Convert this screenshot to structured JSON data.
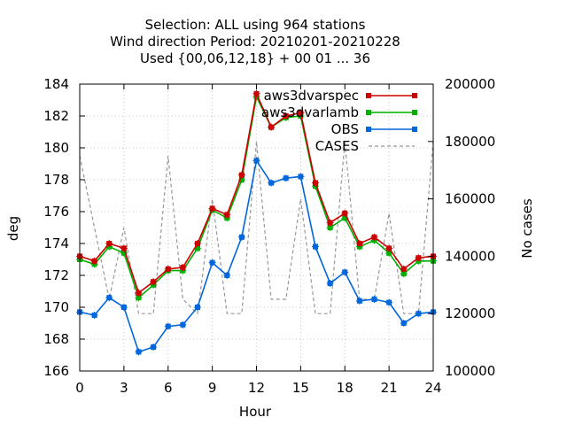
{
  "chart_data": {
    "type": "line",
    "title": [
      "Selection: ALL using   964 stations",
      "Wind direction   Period: 20210201-20210228",
      "Used {00,06,12,18} + 00 01 ... 36"
    ],
    "xlabel": "Hour",
    "ylabel": "deg",
    "y2label": "No cases",
    "xlim": [
      0,
      24
    ],
    "ylim": [
      166,
      184
    ],
    "y2lim": [
      100000,
      200000
    ],
    "x_ticks": [
      0,
      3,
      6,
      9,
      12,
      15,
      18,
      21,
      24
    ],
    "y_ticks": [
      166,
      168,
      170,
      172,
      174,
      176,
      178,
      180,
      182,
      184
    ],
    "y2_ticks": [
      100000,
      120000,
      140000,
      160000,
      180000,
      200000
    ],
    "legend_position": "top-right",
    "x": [
      0,
      1,
      2,
      3,
      4,
      5,
      6,
      7,
      8,
      9,
      10,
      11,
      12,
      13,
      14,
      15,
      16,
      17,
      18,
      19,
      20,
      21,
      22,
      23,
      24
    ],
    "series": [
      {
        "name": "aws3dvarspec",
        "color": "#cc0000",
        "axis": "y",
        "values": [
          173.2,
          172.9,
          174.0,
          173.7,
          170.9,
          171.6,
          172.4,
          172.5,
          174.0,
          176.2,
          175.8,
          178.3,
          183.4,
          181.3,
          182.0,
          182.2,
          177.8,
          175.3,
          175.9,
          174.0,
          174.4,
          173.7,
          172.4,
          173.1,
          173.2
        ]
      },
      {
        "name": "aws3dvarlamb",
        "color": "#00b000",
        "axis": "y",
        "values": [
          173.0,
          172.7,
          173.8,
          173.4,
          170.6,
          171.4,
          172.3,
          172.3,
          173.7,
          176.1,
          175.6,
          178.0,
          183.2,
          181.3,
          181.9,
          182.0,
          177.6,
          175.0,
          175.6,
          173.8,
          174.2,
          173.4,
          172.1,
          172.9,
          172.9
        ]
      },
      {
        "name": "OBS",
        "color": "#0066dd",
        "axis": "y",
        "values": [
          169.7,
          169.5,
          170.6,
          170.0,
          167.2,
          167.5,
          168.8,
          168.9,
          170.0,
          172.8,
          172.0,
          174.4,
          179.2,
          177.8,
          178.1,
          178.2,
          173.8,
          171.5,
          172.2,
          170.4,
          170.5,
          170.3,
          169.0,
          169.6,
          169.7
        ]
      },
      {
        "name": "CASES",
        "color": "#999999",
        "axis": "y2",
        "dashed": true,
        "values": [
          175000,
          150000,
          125000,
          150000,
          120000,
          120000,
          175000,
          125000,
          120000,
          160000,
          120000,
          120000,
          180000,
          125000,
          125000,
          160000,
          120000,
          120000,
          180000,
          125000,
          125000,
          155000,
          120000,
          120000,
          180000
        ]
      }
    ]
  }
}
